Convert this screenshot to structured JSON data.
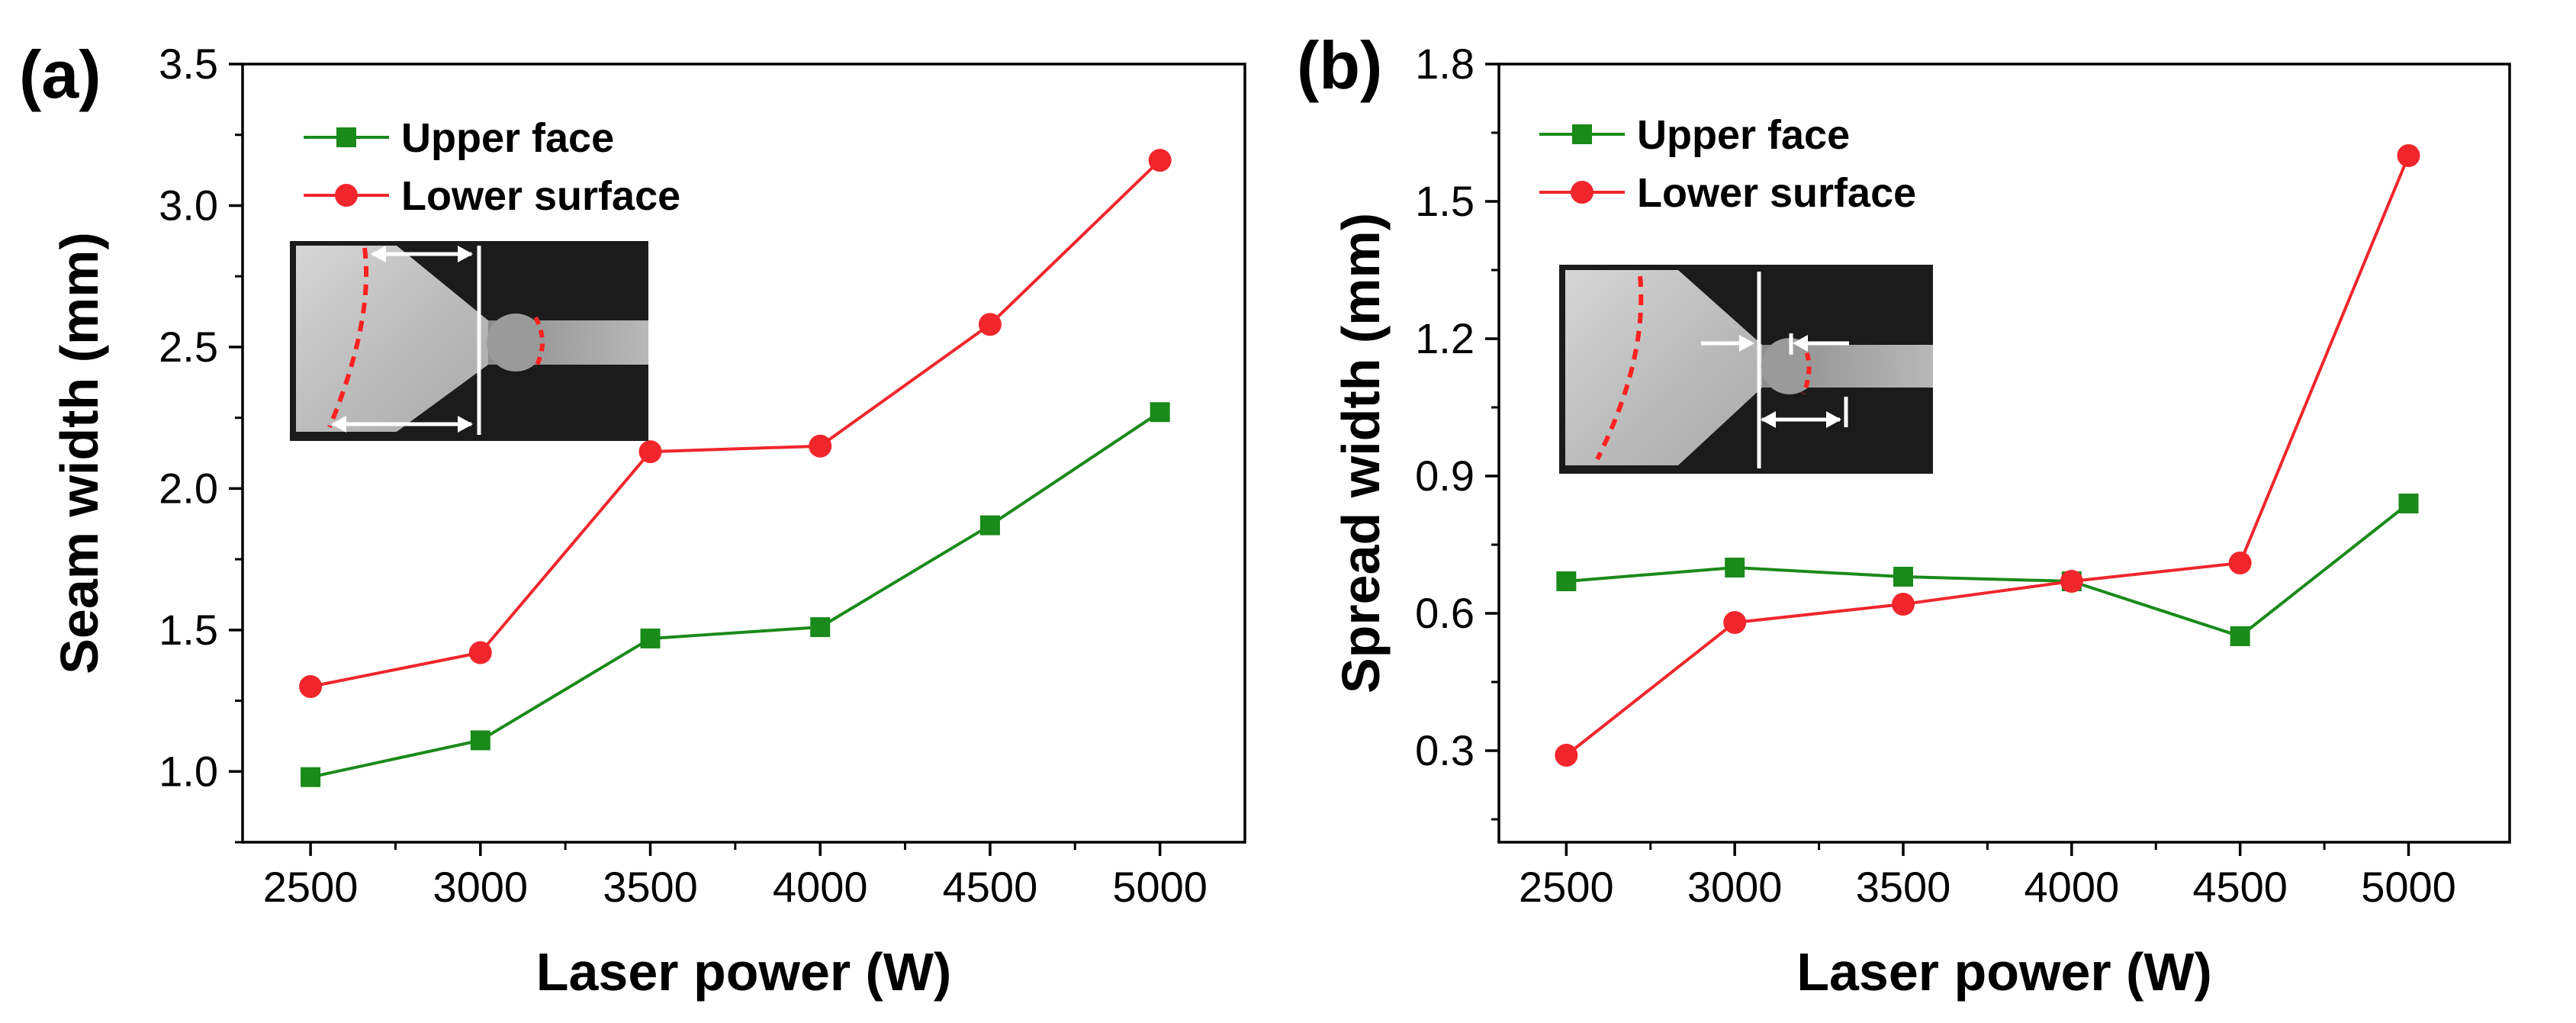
{
  "chart_data": [
    {
      "type": "line",
      "panel_label": "(a)",
      "xlabel": "Laser power (W)",
      "ylabel": "Seam width (mm)",
      "x": [
        2500,
        3000,
        3500,
        4000,
        4500,
        5000
      ],
      "xlim": [
        2300,
        5250
      ],
      "ylim": [
        0.75,
        3.5
      ],
      "xticks": [
        "2500",
        "3000",
        "3500",
        "4000",
        "4500",
        "5000"
      ],
      "yticks": [
        "1.0",
        "1.5",
        "2.0",
        "2.5",
        "3.0",
        "3.5"
      ],
      "legend_position": "top-left",
      "grid": false,
      "series": [
        {
          "name": "Upper face",
          "color": "#1a8a1a",
          "marker": "square",
          "values": [
            0.98,
            1.11,
            1.47,
            1.51,
            1.87,
            2.27
          ]
        },
        {
          "name": "Lower surface",
          "color": "#f0262c",
          "marker": "circle",
          "values": [
            1.3,
            1.42,
            2.13,
            2.15,
            2.58,
            3.16
          ]
        }
      ]
    },
    {
      "type": "line",
      "panel_label": "(b)",
      "xlabel": "Laser power (W)",
      "ylabel": "Spread width (mm)",
      "x": [
        2500,
        3000,
        3500,
        4000,
        4500,
        5000
      ],
      "xlim": [
        2300,
        5300
      ],
      "ylim": [
        0.1,
        1.8
      ],
      "xticks": [
        "2500",
        "3000",
        "3500",
        "4000",
        "4500",
        "5000"
      ],
      "yticks": [
        "0.3",
        "0.6",
        "0.9",
        "1.2",
        "1.5",
        "1.8"
      ],
      "legend_position": "top-left",
      "grid": false,
      "series": [
        {
          "name": "Upper face",
          "color": "#1a8a1a",
          "marker": "square",
          "values": [
            0.67,
            0.7,
            0.68,
            0.67,
            0.55,
            0.84
          ]
        },
        {
          "name": "Lower surface",
          "color": "#f0262c",
          "marker": "circle",
          "values": [
            0.29,
            0.58,
            0.62,
            0.67,
            0.71,
            1.6
          ]
        }
      ]
    }
  ]
}
